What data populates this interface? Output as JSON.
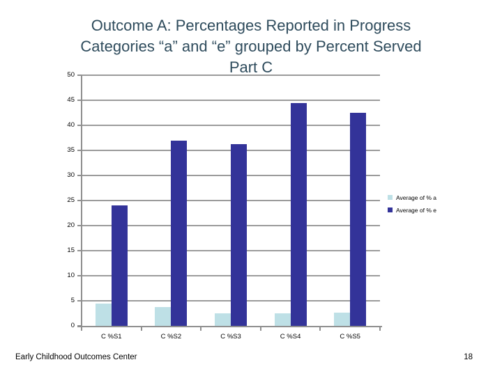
{
  "slide": {
    "title": "Outcome A: Percentages Reported in Progress\nCategories “a” and “e” grouped by Percent Served\nPart C",
    "footer_left": "Early Childhood Outcomes Center",
    "page_number": "18"
  },
  "chart_data": {
    "type": "bar",
    "title": "Outcome A: Percentages Reported in Progress Categories “a” and “e” grouped by Percent Served Part C",
    "categories": [
      "C %S1",
      "C %S2",
      "C %S3",
      "C %S4",
      "C %S5"
    ],
    "series": [
      {
        "name": "Average of % a",
        "color": "#BEE0E6",
        "values": [
          4.5,
          3.8,
          2.5,
          2.5,
          2.7
        ]
      },
      {
        "name": "Average of % e",
        "color": "#333399",
        "values": [
          24,
          37,
          36.2,
          44.4,
          42.5
        ]
      }
    ],
    "xlabel": "",
    "ylabel": "",
    "ylim": [
      0,
      50
    ],
    "yticks": [
      0,
      5,
      10,
      15,
      20,
      25,
      30,
      35,
      40,
      45,
      50
    ],
    "grid": true,
    "legend_position": "right",
    "gridline_color": "#9b9b9b",
    "axis_color": "#8f8f8f"
  },
  "colors": {
    "title_text": "#2E4B5C",
    "background": "#FFFFFF",
    "bar_a": "#BEE0E6",
    "bar_e": "#333399",
    "axis_label_text": "#000000"
  }
}
